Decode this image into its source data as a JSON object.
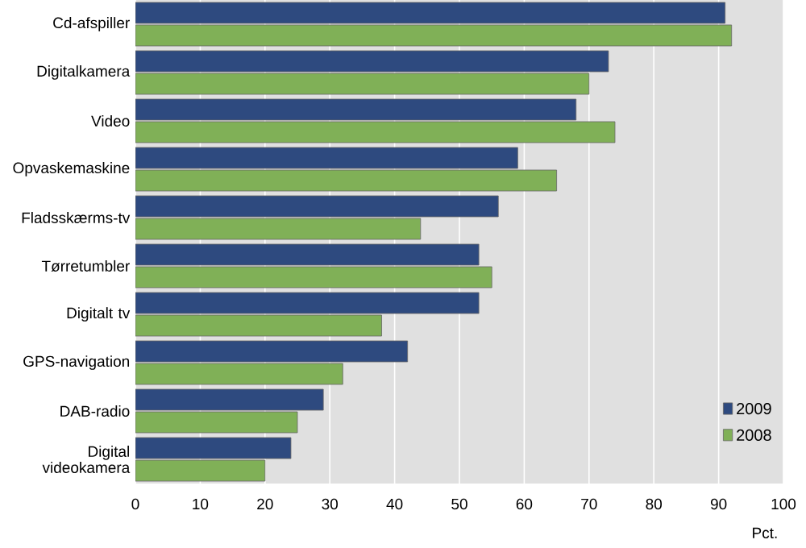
{
  "chart_data": {
    "type": "bar",
    "orientation": "horizontal",
    "categories": [
      "Cd-afspiller",
      "Digitalkamera",
      "Video",
      "Opvaskemaskine",
      "Fladsskærms-tv",
      "Tørretumbler",
      "Digitalt tv",
      "GPS-navigation",
      "DAB-radio",
      "Digital videokamera"
    ],
    "series": [
      {
        "name": "2009",
        "color": "#2e4a7f",
        "values": [
          91,
          73,
          68,
          59,
          56,
          53,
          53,
          42,
          29,
          24
        ]
      },
      {
        "name": "2008",
        "color": "#80b057",
        "values": [
          92,
          70,
          74,
          65,
          44,
          55,
          38,
          32,
          25,
          20
        ]
      }
    ],
    "xlim": [
      0,
      100
    ],
    "xticks": [
      0,
      10,
      20,
      30,
      40,
      50,
      60,
      70,
      80,
      90,
      100
    ],
    "xlabel": "Pct.",
    "grid": "x",
    "legend": "bottom right"
  }
}
